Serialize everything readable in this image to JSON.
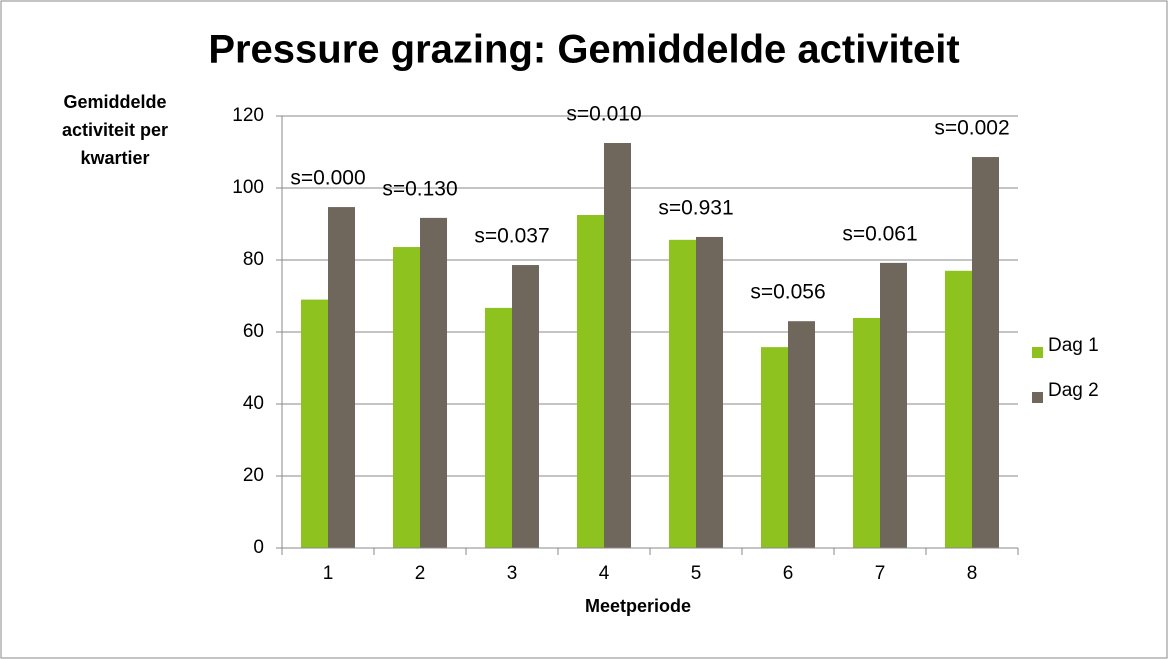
{
  "chart_data": {
    "type": "bar",
    "title": "Pressure grazing: Gemiddelde activiteit",
    "ylabel": [
      "Gemiddelde",
      "activiteit per",
      "kwartier"
    ],
    "xlabel": "Meetperiode",
    "categories": [
      "1",
      "2",
      "3",
      "4",
      "5",
      "6",
      "7",
      "8"
    ],
    "series": [
      {
        "name": "Dag 1",
        "color": "#8dc21f",
        "values": [
          69,
          83.6,
          66.7,
          92.5,
          85.6,
          55.8,
          63.9,
          77
        ]
      },
      {
        "name": "Dag 2",
        "color": "#6f665c",
        "values": [
          94.7,
          91.7,
          78.6,
          112.5,
          86.4,
          63,
          79.2,
          108.6
        ]
      }
    ],
    "annotations": [
      "s=0.000",
      "s=0.130",
      "s=0.037",
      "s=0.010",
      "s=0.931",
      "s=0.056",
      "s=0.061",
      "s=0.002"
    ],
    "ylim": [
      0,
      120
    ],
    "yticks": [
      0,
      20,
      40,
      60,
      80,
      100,
      120
    ],
    "grid": true,
    "legend": "right"
  }
}
